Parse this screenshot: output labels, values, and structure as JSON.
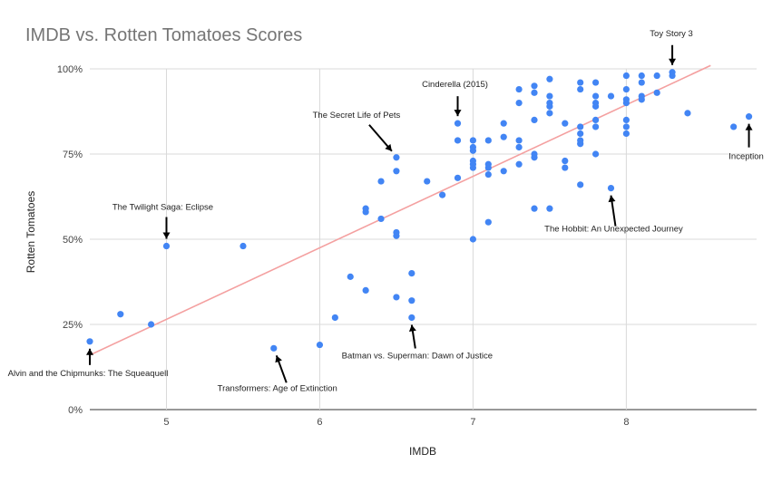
{
  "chart_data": {
    "type": "scatter",
    "title": "IMDB vs. Rotten Tomatoes Scores",
    "xlabel": "IMDB",
    "ylabel": "Rotten Tomatoes",
    "xlim": [
      4.5,
      8.85
    ],
    "ylim": [
      0,
      100
    ],
    "x_ticks": [
      5,
      6,
      7,
      8
    ],
    "y_ticks": [
      0,
      25,
      50,
      75,
      100
    ],
    "y_tick_labels": [
      "0%",
      "25%",
      "50%",
      "75%",
      "100%"
    ],
    "grid": true,
    "point_color": "#4285f4",
    "trendline": {
      "color": "#f4a0a0",
      "start": [
        4.5,
        16
      ],
      "end": [
        8.55,
        101
      ]
    },
    "points": [
      [
        4.5,
        20
      ],
      [
        4.7,
        28
      ],
      [
        4.9,
        25
      ],
      [
        5.0,
        48
      ],
      [
        5.5,
        48
      ],
      [
        5.7,
        18
      ],
      [
        6.0,
        19
      ],
      [
        6.1,
        27
      ],
      [
        6.2,
        39
      ],
      [
        6.3,
        35
      ],
      [
        6.3,
        58
      ],
      [
        6.3,
        59
      ],
      [
        6.4,
        56
      ],
      [
        6.4,
        67
      ],
      [
        6.5,
        33
      ],
      [
        6.5,
        51
      ],
      [
        6.5,
        52
      ],
      [
        6.5,
        70
      ],
      [
        6.5,
        74
      ],
      [
        6.6,
        27
      ],
      [
        6.6,
        32
      ],
      [
        6.6,
        40
      ],
      [
        6.7,
        67
      ],
      [
        6.8,
        63
      ],
      [
        6.9,
        68
      ],
      [
        6.9,
        79
      ],
      [
        6.9,
        84
      ],
      [
        7.0,
        50
      ],
      [
        7.0,
        71
      ],
      [
        7.0,
        72
      ],
      [
        7.0,
        73
      ],
      [
        7.0,
        76
      ],
      [
        7.0,
        77
      ],
      [
        7.0,
        79
      ],
      [
        7.1,
        55
      ],
      [
        7.1,
        69
      ],
      [
        7.1,
        71
      ],
      [
        7.1,
        72
      ],
      [
        7.1,
        79
      ],
      [
        7.2,
        70
      ],
      [
        7.2,
        80
      ],
      [
        7.2,
        84
      ],
      [
        7.3,
        72
      ],
      [
        7.3,
        77
      ],
      [
        7.3,
        79
      ],
      [
        7.3,
        90
      ],
      [
        7.3,
        94
      ],
      [
        7.4,
        59
      ],
      [
        7.4,
        74
      ],
      [
        7.4,
        75
      ],
      [
        7.4,
        85
      ],
      [
        7.4,
        93
      ],
      [
        7.4,
        95
      ],
      [
        7.5,
        59
      ],
      [
        7.5,
        87
      ],
      [
        7.5,
        89
      ],
      [
        7.5,
        90
      ],
      [
        7.5,
        92
      ],
      [
        7.5,
        97
      ],
      [
        7.6,
        71
      ],
      [
        7.6,
        73
      ],
      [
        7.6,
        84
      ],
      [
        7.7,
        66
      ],
      [
        7.7,
        78
      ],
      [
        7.7,
        79
      ],
      [
        7.7,
        81
      ],
      [
        7.7,
        83
      ],
      [
        7.7,
        94
      ],
      [
        7.7,
        96
      ],
      [
        7.8,
        75
      ],
      [
        7.8,
        83
      ],
      [
        7.8,
        85
      ],
      [
        7.8,
        89
      ],
      [
        7.8,
        90
      ],
      [
        7.8,
        92
      ],
      [
        7.8,
        96
      ],
      [
        7.9,
        65
      ],
      [
        7.9,
        92
      ],
      [
        8.0,
        81
      ],
      [
        8.0,
        83
      ],
      [
        8.0,
        85
      ],
      [
        8.0,
        90
      ],
      [
        8.0,
        91
      ],
      [
        8.0,
        94
      ],
      [
        8.0,
        98
      ],
      [
        8.1,
        91
      ],
      [
        8.1,
        92
      ],
      [
        8.1,
        96
      ],
      [
        8.1,
        98
      ],
      [
        8.2,
        93
      ],
      [
        8.2,
        98
      ],
      [
        8.3,
        98
      ],
      [
        8.3,
        99
      ],
      [
        8.4,
        87
      ],
      [
        8.7,
        83
      ],
      [
        8.8,
        86
      ]
    ],
    "annotations": [
      {
        "text": "Toy Story 3",
        "x": 8.3,
        "y": 99
      },
      {
        "text": "Cinderella (2015)",
        "x": 6.9,
        "y": 84
      },
      {
        "text": "The Secret Life of Pets",
        "x": 6.5,
        "y": 74
      },
      {
        "text": "Inception",
        "x": 8.8,
        "y": 86
      },
      {
        "text": "The Twilight Saga: Eclipse",
        "x": 5.0,
        "y": 48
      },
      {
        "text": "The Hobbit: An Unexpected Journey",
        "x": 7.9,
        "y": 65
      },
      {
        "text": "Batman vs. Superman: Dawn of Justice",
        "x": 6.6,
        "y": 27
      },
      {
        "text": "Alvin and the Chipmunks: The Squeaquell",
        "x": 4.5,
        "y": 20
      },
      {
        "text": "Transformers: Age of Extinction",
        "x": 5.7,
        "y": 18
      }
    ]
  }
}
